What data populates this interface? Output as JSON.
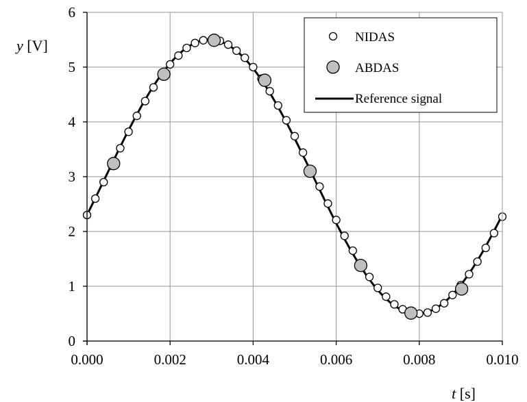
{
  "chart_data": {
    "type": "scatter",
    "xlabel_var": "t",
    "xlabel_unit": " [s]",
    "ylabel_var": "y",
    "ylabel_unit": " [V]",
    "xlim": [
      0,
      0.01
    ],
    "ylim": [
      0,
      6
    ],
    "x_ticks": [
      "0.000",
      "0.002",
      "0.004",
      "0.006",
      "0.008",
      "0.010"
    ],
    "y_ticks": [
      "0",
      "1",
      "2",
      "3",
      "4",
      "5",
      "6"
    ],
    "grid": true,
    "legend_position": "top-right",
    "reference": {
      "offset": 3.0,
      "amplitude": 2.5,
      "frequency_hz": 100,
      "phase_rad": -0.2823
    },
    "series": [
      {
        "name": "NIDAS",
        "marker": "open-circle",
        "x": [
          0.0,
          0.0002,
          0.0004,
          0.0006,
          0.0008,
          0.001,
          0.0012,
          0.0014,
          0.0016,
          0.0018,
          0.002,
          0.0022,
          0.0024,
          0.0026,
          0.0028,
          0.003,
          0.0032,
          0.0034,
          0.0036,
          0.0038,
          0.004,
          0.0042,
          0.0044,
          0.0046,
          0.0048,
          0.005,
          0.0052,
          0.0054,
          0.0056,
          0.0058,
          0.006,
          0.0062,
          0.0064,
          0.0066,
          0.0068,
          0.007,
          0.0072,
          0.0074,
          0.0076,
          0.0078,
          0.008,
          0.0082,
          0.0084,
          0.0086,
          0.0088,
          0.009,
          0.0092,
          0.0094,
          0.0096,
          0.0098,
          0.01
        ],
        "y": [
          2.3,
          2.6,
          2.9,
          3.2,
          3.52,
          3.82,
          4.11,
          4.38,
          4.63,
          4.86,
          5.05,
          5.21,
          5.35,
          5.44,
          5.49,
          5.5,
          5.48,
          5.41,
          5.3,
          5.17,
          5.0,
          4.79,
          4.56,
          4.3,
          4.03,
          3.74,
          3.44,
          3.13,
          2.82,
          2.51,
          2.21,
          1.92,
          1.65,
          1.4,
          1.17,
          0.97,
          0.81,
          0.67,
          0.58,
          0.52,
          0.5,
          0.52,
          0.59,
          0.69,
          0.84,
          1.02,
          1.22,
          1.45,
          1.7,
          1.97,
          2.27
        ]
      },
      {
        "name": "ABDAS",
        "marker": "filled-circle",
        "x": [
          0.00064,
          0.00185,
          0.00306,
          0.00428,
          0.00537,
          0.00659,
          0.0078,
          0.00902
        ],
        "y": [
          3.24,
          4.87,
          5.49,
          4.76,
          3.1,
          1.38,
          0.51,
          0.95
        ]
      },
      {
        "name": "Reference signal",
        "marker": "line"
      }
    ]
  },
  "colors": {
    "grid": "#a6a6a6",
    "axis": "#000000",
    "nidas_fill": "#ffffff",
    "abdas_fill": "#bfbfbf",
    "line": "#000000"
  }
}
